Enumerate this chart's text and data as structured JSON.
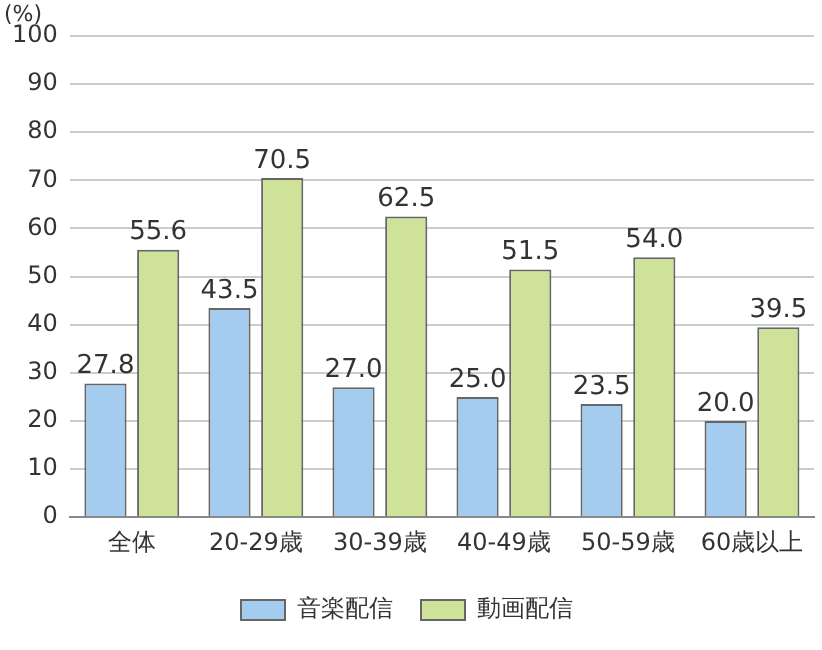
{
  "chart_data": {
    "type": "bar",
    "ylabel": "(%)",
    "categories": [
      "全体",
      "20-29歳",
      "30-39歳",
      "40-49歳",
      "50-59歳",
      "60歳以上"
    ],
    "series": [
      {
        "name": "音楽配信",
        "color": "#a3ccee",
        "values": [
          27.8,
          43.5,
          27.0,
          25.0,
          23.5,
          20.0
        ],
        "value_labels": [
          "27.8",
          "43.5",
          "27.0",
          "25.0",
          "23.5",
          "20.0"
        ]
      },
      {
        "name": "動画配信",
        "color": "#cfe29a",
        "values": [
          55.6,
          70.5,
          62.5,
          51.5,
          54.0,
          39.5
        ],
        "value_labels": [
          "55.6",
          "70.5",
          "62.5",
          "51.5",
          "54.0",
          "39.5"
        ]
      }
    ],
    "ylim": [
      0,
      100
    ],
    "yticks": [
      0,
      10,
      20,
      30,
      40,
      50,
      60,
      70,
      80,
      90,
      100
    ],
    "grid": "y",
    "legend": "bottom"
  }
}
